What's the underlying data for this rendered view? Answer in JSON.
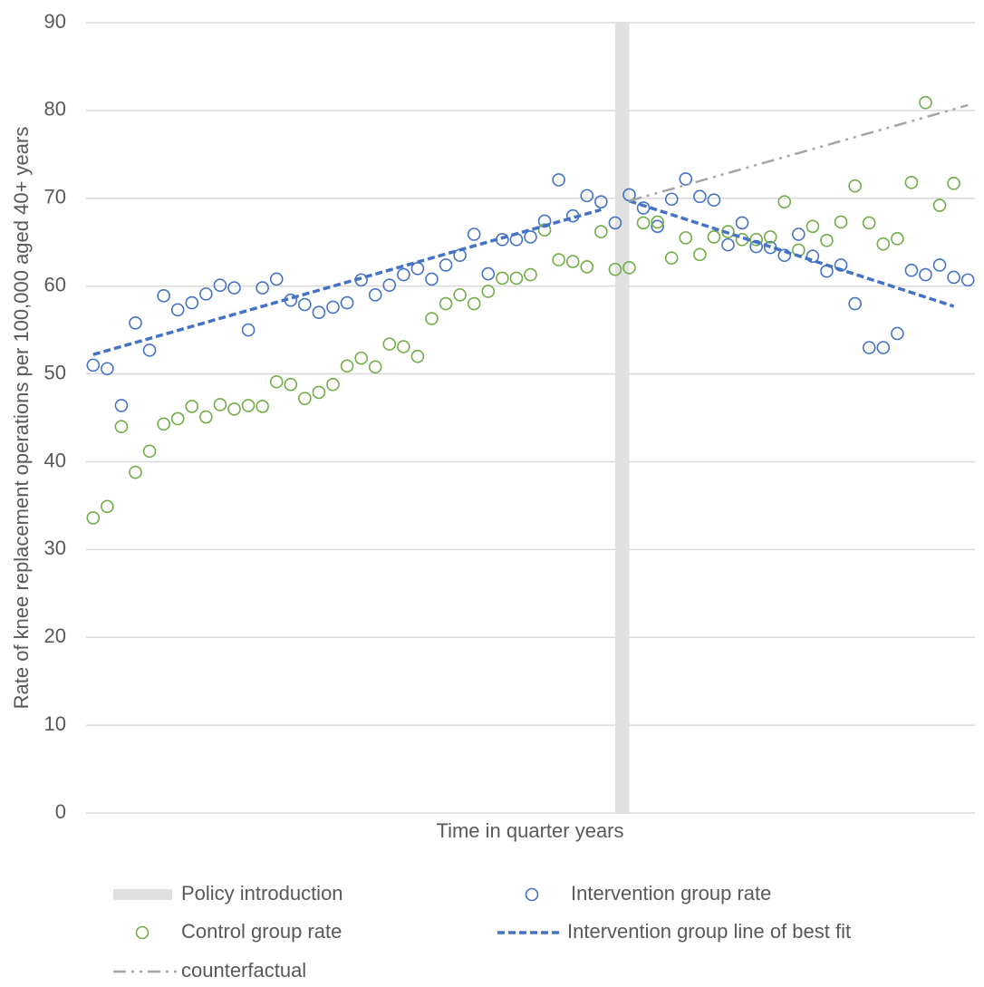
{
  "chart_data": {
    "type": "scatter",
    "x_label": "Time in quarter years",
    "y_label": "Rate of knee replacement operations per 100,000 aged 40+ years",
    "xlim": [
      0.5,
      63.5
    ],
    "ylim": [
      0,
      90
    ],
    "yticks": [
      0,
      10,
      20,
      30,
      40,
      50,
      60,
      70,
      80,
      90
    ],
    "grid": true,
    "policy": {
      "name": "Policy introduction",
      "x": 38.5,
      "color": "#e0e0e0"
    },
    "x": [
      1,
      2,
      3,
      4,
      5,
      6,
      7,
      8,
      9,
      10,
      11,
      12,
      13,
      14,
      15,
      16,
      17,
      18,
      19,
      20,
      21,
      22,
      23,
      24,
      25,
      26,
      27,
      28,
      29,
      30,
      31,
      32,
      33,
      34,
      35,
      36,
      37,
      38,
      39,
      40,
      41,
      42,
      43,
      44,
      45,
      46,
      47,
      48,
      49,
      50,
      51,
      52,
      53,
      54,
      55,
      56,
      57,
      58,
      59,
      60,
      61,
      62,
      63
    ],
    "series": [
      {
        "name": "Intervention group rate",
        "color": "#4472c4",
        "style": "marker",
        "values": [
          51.0,
          50.6,
          46.4,
          55.8,
          52.7,
          58.9,
          57.3,
          58.1,
          59.1,
          60.1,
          59.8,
          55.0,
          59.8,
          60.8,
          58.4,
          57.9,
          57.0,
          57.6,
          58.1,
          60.7,
          59.0,
          60.1,
          61.3,
          62.0,
          60.8,
          62.4,
          63.5,
          65.9,
          61.4,
          65.3,
          65.3,
          65.6,
          67.4,
          72.1,
          68.0,
          70.3,
          69.6,
          67.2,
          70.4,
          68.9,
          66.8,
          69.9,
          72.2,
          70.2,
          69.8,
          64.7,
          67.2,
          64.5,
          64.4,
          63.5,
          65.9,
          63.4,
          61.7,
          62.4,
          58.0,
          53.0,
          53.0,
          54.6,
          61.8,
          61.3,
          62.4,
          61.0,
          60.7
        ]
      },
      {
        "name": "Control group rate",
        "color": "#70ad47",
        "style": "marker",
        "values": [
          33.6,
          34.9,
          44.0,
          38.8,
          41.2,
          44.3,
          44.9,
          46.3,
          45.1,
          46.5,
          46.0,
          46.4,
          46.3,
          49.1,
          48.8,
          47.2,
          47.9,
          48.8,
          50.9,
          51.8,
          50.8,
          53.4,
          53.1,
          52.0,
          56.3,
          58.0,
          59.0,
          58.0,
          59.4,
          60.9,
          60.9,
          61.3,
          66.4,
          63.0,
          62.8,
          62.2,
          66.2,
          61.9,
          62.1,
          67.2,
          67.3,
          63.2,
          65.5,
          63.6,
          65.6,
          66.2,
          65.3,
          65.3,
          65.6,
          69.6,
          64.1,
          66.8,
          65.2,
          67.3,
          71.4,
          67.2,
          64.8,
          65.4,
          71.8,
          80.9,
          69.2,
          71.7,
          null
        ]
      },
      {
        "name": "Intervention group line of best fit",
        "color": "#4472c4",
        "style": "dashed",
        "x": [
          1,
          37,
          38,
          39,
          62
        ],
        "values": [
          52.2,
          68.7,
          null,
          69.7,
          57.7
        ]
      },
      {
        "name": "counterfactual",
        "color": "#a5a5a5",
        "style": "dash-dot-dot",
        "x": [
          39,
          63
        ],
        "values": [
          69.7,
          80.6
        ]
      }
    ]
  }
}
